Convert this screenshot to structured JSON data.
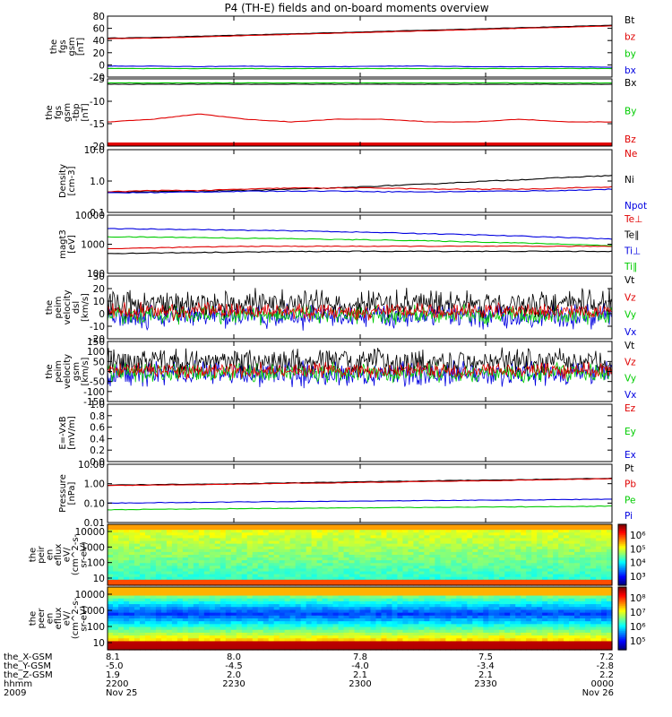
{
  "title": "P4 (TH-E) fields and on-board moments overview",
  "colors": {
    "black": "#000000",
    "red": "#e00000",
    "green": "#00cc00",
    "blue": "#0000e0"
  },
  "panels": [
    {
      "key": "fgs_gsm",
      "ylabel": [
        "the",
        "fgs",
        "gsm",
        "[nT]"
      ],
      "ylim": [
        -20,
        80
      ],
      "ticks": [
        "80",
        "60",
        "40",
        "20",
        "0",
        "-20"
      ],
      "log": false,
      "labels": [
        {
          "text": "Bt",
          "color": "black"
        },
        {
          "text": "bz",
          "color": "red"
        },
        {
          "text": "by",
          "color": "green"
        },
        {
          "text": "bx",
          "color": "blue"
        }
      ],
      "series": [
        {
          "name": "Bt",
          "color": "black",
          "style": "trend",
          "v": [
            44,
            45,
            47,
            49,
            51,
            53,
            55,
            57,
            59,
            61,
            63,
            65
          ]
        },
        {
          "name": "bz",
          "color": "red",
          "style": "trend",
          "v": [
            43,
            44,
            46,
            48,
            50,
            52,
            54,
            56,
            58,
            60,
            62,
            64
          ]
        },
        {
          "name": "bx",
          "color": "blue",
          "style": "trend",
          "v": [
            -2,
            -2,
            -3,
            -2,
            -3,
            -3,
            -2,
            -2,
            -3,
            -3,
            -3,
            -4
          ]
        },
        {
          "name": "by",
          "color": "green",
          "style": "trend",
          "v": [
            -6,
            -6,
            -6,
            -6,
            -6,
            -6,
            -6,
            -6,
            -6,
            -6,
            -6,
            -6
          ]
        }
      ]
    },
    {
      "key": "fgs_gsm_tbp",
      "ylabel": [
        "the",
        "fgs",
        "gsm",
        "-tbp",
        "[nT]"
      ],
      "ylim": [
        -25,
        0
      ],
      "ticks": [
        "-5",
        "-10",
        "-15",
        "-20"
      ],
      "log": false,
      "labels": [
        {
          "text": "Bx",
          "color": "black"
        },
        {
          "text": "By",
          "color": "green"
        },
        {
          "text": "Bz",
          "color": "red"
        }
      ],
      "series": [
        {
          "name": "Bx",
          "color": "black",
          "style": "trend",
          "v": [
            -2,
            -2,
            -2,
            -2,
            -2,
            -2,
            -2,
            -2,
            -2,
            -2,
            -2,
            -2
          ]
        },
        {
          "name": "By",
          "color": "green",
          "style": "trend",
          "v": [
            -1.5,
            -1.5,
            -1.5,
            -1.5,
            -1.5,
            -1.5,
            -1.5,
            -1.5,
            -1.5,
            -1.5,
            -1.5,
            -1.5
          ]
        },
        {
          "name": "Bz",
          "color": "red",
          "style": "trend",
          "v": [
            -16,
            -15,
            -13,
            -15,
            -16,
            -15,
            -15,
            -16,
            -16,
            -15,
            -16,
            -16
          ]
        }
      ]
    },
    {
      "key": "density",
      "ylabel": [
        "Density",
        "[cm-3]"
      ],
      "ylim": [
        0.1,
        10
      ],
      "ticks": [
        "10.0",
        "1.0",
        "0.1"
      ],
      "log": true,
      "labels": [
        {
          "text": "Ne",
          "color": "red"
        },
        {
          "text": "Ni",
          "color": "black"
        },
        {
          "text": "Npot",
          "color": "blue"
        }
      ],
      "series": [
        {
          "name": "Ni",
          "color": "black",
          "style": "trend",
          "v": [
            0.45,
            0.45,
            0.48,
            0.5,
            0.55,
            0.6,
            0.7,
            0.8,
            0.95,
            1.1,
            1.3,
            1.5
          ]
        },
        {
          "name": "Ne",
          "color": "red",
          "style": "trend",
          "v": [
            0.45,
            0.5,
            0.5,
            0.55,
            0.6,
            0.6,
            0.6,
            0.55,
            0.55,
            0.55,
            0.6,
            0.65
          ]
        },
        {
          "name": "Npot",
          "color": "blue",
          "style": "trend",
          "v": [
            0.42,
            0.43,
            0.45,
            0.47,
            0.48,
            0.48,
            0.46,
            0.45,
            0.47,
            0.48,
            0.5,
            0.55
          ]
        }
      ]
    },
    {
      "key": "mag_t3",
      "ylabel": [
        "magt3",
        "[eV]"
      ],
      "ylim": [
        100,
        10000
      ],
      "ticks": [
        "10000",
        "1000",
        "100"
      ],
      "log": true,
      "labels": [
        {
          "text": "Te⊥",
          "color": "red"
        },
        {
          "text": "Te∥",
          "color": "black"
        },
        {
          "text": "Ti⊥",
          "color": "blue"
        },
        {
          "text": "Ti∥",
          "color": "green"
        }
      ],
      "series": [
        {
          "name": "Ti⊥",
          "color": "blue",
          "style": "trend",
          "v": [
            3400,
            3300,
            3200,
            3000,
            2900,
            2700,
            2500,
            2300,
            2100,
            1900,
            1700,
            1500
          ]
        },
        {
          "name": "Ti∥",
          "color": "green",
          "style": "trend",
          "v": [
            1800,
            1750,
            1700,
            1600,
            1550,
            1450,
            1400,
            1300,
            1200,
            1100,
            1000,
            900
          ]
        },
        {
          "name": "Te⊥",
          "color": "red",
          "style": "trend",
          "v": [
            700,
            750,
            800,
            850,
            850,
            850,
            850,
            850,
            850,
            850,
            850,
            850
          ]
        },
        {
          "name": "Te∥",
          "color": "black",
          "style": "trend",
          "v": [
            480,
            500,
            520,
            540,
            560,
            570,
            570,
            570,
            570,
            570,
            570,
            570
          ]
        }
      ]
    },
    {
      "key": "peim_velocity_dsl",
      "ylabel": [
        "the",
        "peim",
        "velocity",
        "dsl",
        "[km/s]"
      ],
      "ylim": [
        -20,
        30
      ],
      "ticks": [
        "30",
        "20",
        "10",
        "0",
        "-10",
        "-20"
      ],
      "log": false,
      "labels": [
        {
          "text": "Vt",
          "color": "black"
        },
        {
          "text": "Vz",
          "color": "red"
        },
        {
          "text": "Vy",
          "color": "green"
        },
        {
          "text": "Vx",
          "color": "blue"
        }
      ],
      "series": [
        {
          "name": "Vx",
          "color": "blue",
          "style": "noise",
          "center": -2,
          "amp": 9
        },
        {
          "name": "Vy",
          "color": "green",
          "style": "noise",
          "center": -1,
          "amp": 7
        },
        {
          "name": "Vt",
          "color": "black",
          "style": "noise",
          "center": 8,
          "amp": 10
        },
        {
          "name": "Vz",
          "color": "red",
          "style": "noise",
          "center": 2,
          "amp": 6
        }
      ]
    },
    {
      "key": "peim_velocity_gsm",
      "ylabel": [
        "the",
        "peim",
        "velocity",
        "gsm",
        "[km/s]"
      ],
      "ylim": [
        -150,
        150
      ],
      "ticks": [
        "150",
        "100",
        "50",
        "0",
        "-50",
        "-100",
        "-150"
      ],
      "log": false,
      "labels": [
        {
          "text": "Vt",
          "color": "black"
        },
        {
          "text": "Vz",
          "color": "red"
        },
        {
          "text": "Vy",
          "color": "green"
        },
        {
          "text": "Vx",
          "color": "blue"
        }
      ],
      "series": [
        {
          "name": "Vx",
          "color": "blue",
          "style": "noise",
          "center": -10,
          "amp": 60
        },
        {
          "name": "Vy",
          "color": "green",
          "style": "noise",
          "center": -5,
          "amp": 45
        },
        {
          "name": "Vt",
          "color": "black",
          "style": "noise",
          "center": 50,
          "amp": 60
        },
        {
          "name": "Vz",
          "color": "red",
          "style": "noise",
          "center": 5,
          "amp": 35
        }
      ]
    },
    {
      "key": "e_vxb",
      "ylabel": [
        "E=-VxB",
        "[mV/m]"
      ],
      "ylim": [
        0,
        1
      ],
      "ticks": [
        "1.0",
        "0.8",
        "0.6",
        "0.4",
        "0.2",
        "0.0"
      ],
      "log": false,
      "labels": [
        {
          "text": "Ez",
          "color": "red"
        },
        {
          "text": "Ey",
          "color": "green"
        },
        {
          "text": "Ex",
          "color": "blue"
        }
      ],
      "series": []
    },
    {
      "key": "pressure",
      "ylabel": [
        "Pressure",
        "[nPa]"
      ],
      "ylim": [
        0.01,
        10
      ],
      "ticks": [
        "10.00",
        "1.00",
        "0.10",
        "0.01"
      ],
      "log": true,
      "labels": [
        {
          "text": "Pt",
          "color": "black"
        },
        {
          "text": "Pb",
          "color": "red"
        },
        {
          "text": "Pe",
          "color": "green"
        },
        {
          "text": "Pi",
          "color": "blue"
        }
      ],
      "series": [
        {
          "name": "Pt",
          "color": "black",
          "style": "trend",
          "v": [
            0.85,
            0.9,
            0.95,
            1.0,
            1.1,
            1.2,
            1.3,
            1.4,
            1.5,
            1.6,
            1.75,
            1.9
          ]
        },
        {
          "name": "Pb",
          "color": "red",
          "style": "trend",
          "v": [
            0.8,
            0.85,
            0.9,
            0.95,
            1.05,
            1.1,
            1.2,
            1.3,
            1.4,
            1.5,
            1.65,
            1.8
          ]
        },
        {
          "name": "Pi",
          "color": "blue",
          "style": "trend",
          "v": [
            0.1,
            0.105,
            0.11,
            0.115,
            0.12,
            0.125,
            0.13,
            0.135,
            0.14,
            0.145,
            0.15,
            0.16
          ]
        },
        {
          "name": "Pe",
          "color": "green",
          "style": "trend",
          "v": [
            0.045,
            0.048,
            0.05,
            0.052,
            0.054,
            0.056,
            0.058,
            0.06,
            0.062,
            0.064,
            0.066,
            0.07
          ]
        }
      ]
    }
  ],
  "spectrograms": [
    {
      "key": "peir_en_eflux",
      "ylabel": [
        "the",
        "peir",
        "en",
        "eflux",
        "eV/",
        "(cm^2-s-",
        "sr-eV)"
      ],
      "ticks": [
        "10000",
        "1000",
        "100",
        "10"
      ],
      "cbar_ticks": [
        "10⁶",
        "10⁵",
        "10⁴",
        "10³"
      ]
    },
    {
      "key": "peer_en_eflux",
      "ylabel": [
        "the",
        "peer",
        "en",
        "eflux",
        "eV/",
        "(cm^2-s-",
        "sr-eV)"
      ],
      "ticks": [
        "10000",
        "1000",
        "100",
        "10"
      ],
      "cbar_ticks": [
        "10⁸",
        "10⁷",
        "10⁶",
        "10⁵"
      ]
    }
  ],
  "xaxis": {
    "row_labels": [
      "the_X-GSM",
      "the_Y-GSM",
      "the_Z-GSM",
      "hhmm",
      "2009"
    ],
    "columns": [
      {
        "values": [
          "8.1",
          "-5.0",
          "1.9",
          "2200",
          "Nov 25"
        ]
      },
      {
        "values": [
          "8.0",
          "-4.5",
          "2.0",
          "2230",
          ""
        ]
      },
      {
        "values": [
          "7.8",
          "-4.0",
          "2.1",
          "2300",
          ""
        ]
      },
      {
        "values": [
          "7.5",
          "-3.4",
          "2.1",
          "2330",
          ""
        ]
      },
      {
        "values": [
          "7.2",
          "-2.8",
          "2.2",
          "0000",
          "Nov 26"
        ]
      }
    ]
  }
}
